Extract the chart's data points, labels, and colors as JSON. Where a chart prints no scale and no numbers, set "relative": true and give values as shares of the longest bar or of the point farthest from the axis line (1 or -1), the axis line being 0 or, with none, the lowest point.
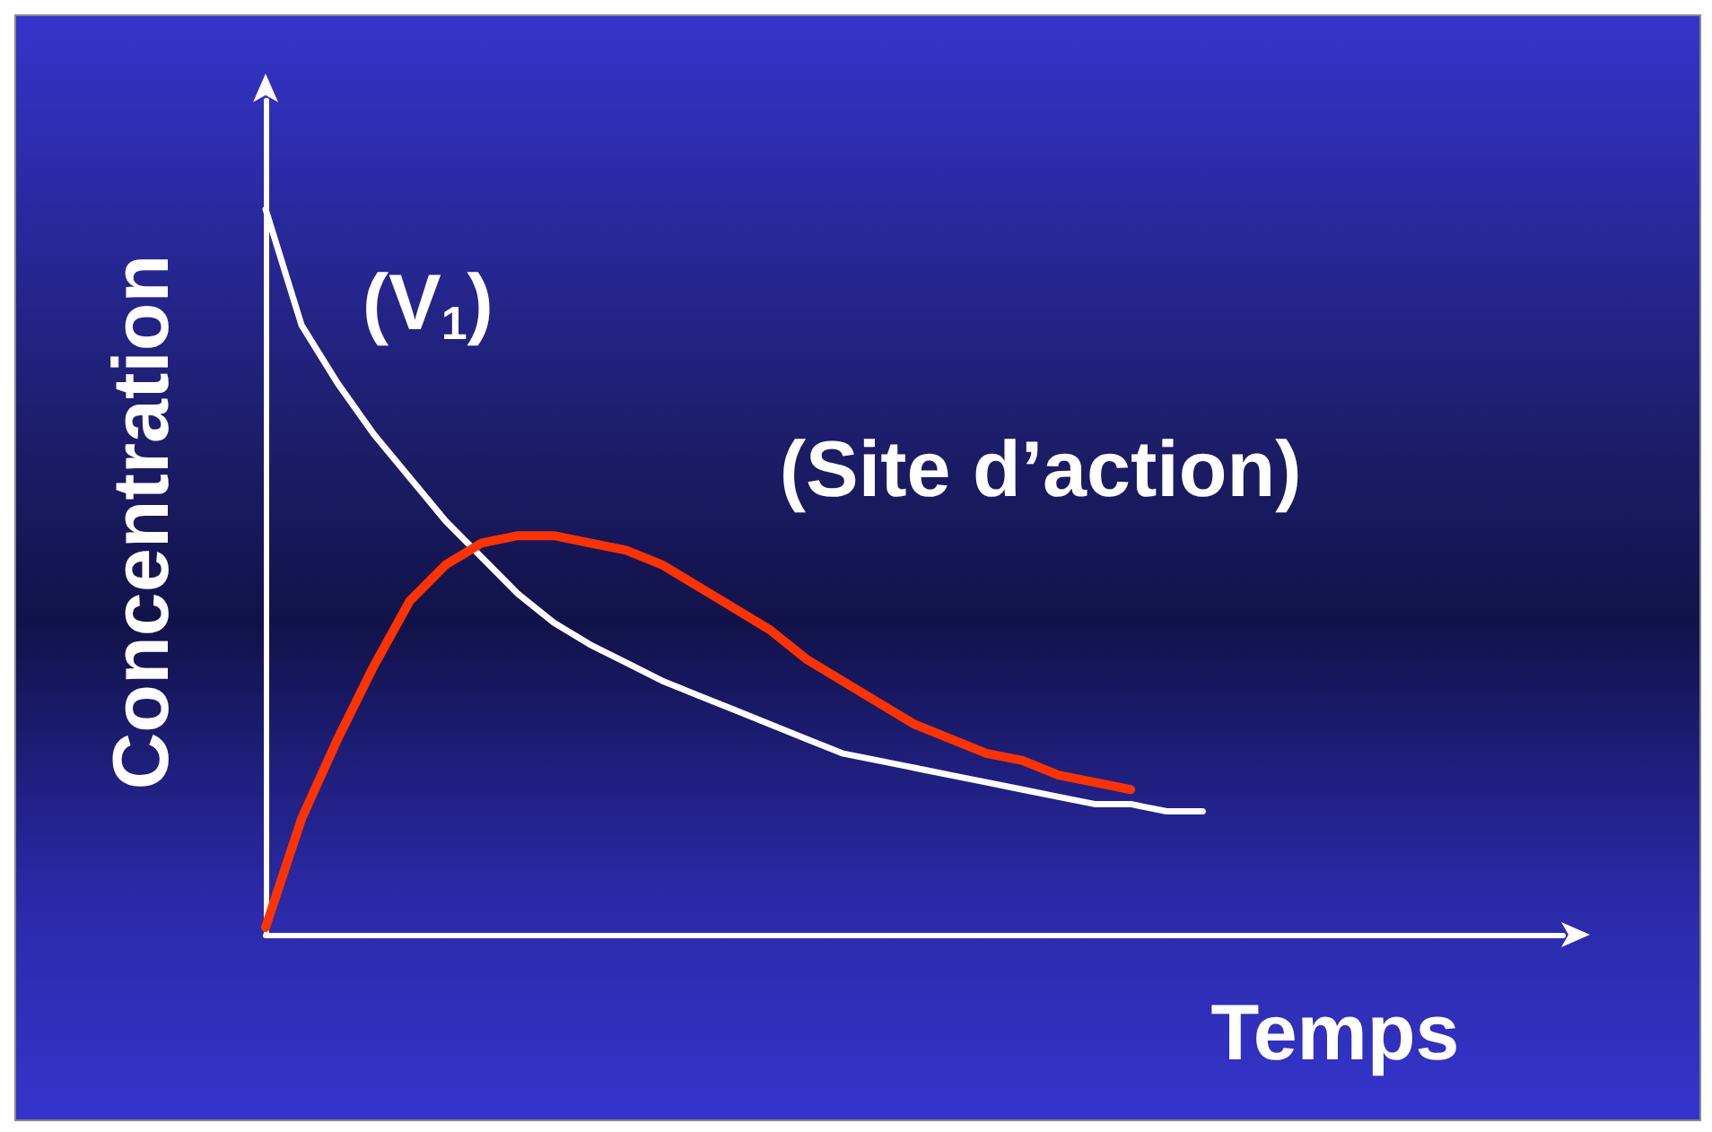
{
  "chart_data": {
    "type": "line",
    "relative": true,
    "xlabel": "Temps",
    "ylabel": "Concentration",
    "marker": "none",
    "line_style": "solid",
    "grid": false,
    "categories": [
      null,
      null,
      null,
      null,
      null,
      null,
      null,
      null,
      null,
      null,
      null,
      null,
      null,
      null,
      null,
      null,
      null,
      null,
      null,
      null,
      null,
      null,
      null,
      null,
      null,
      null,
      null,
      null,
      null,
      null,
      null,
      null,
      null,
      null,
      null,
      null,
      null
    ],
    "series": [
      {
        "name": "(V$_{1}$)",
        "color": "#ffffff",
        "values": [
          1.0,
          0.84,
          0.76,
          0.69,
          0.63,
          0.57,
          0.52,
          0.47,
          0.43,
          0.4,
          0.375,
          0.35,
          0.33,
          0.31,
          0.29,
          0.27,
          0.25,
          0.24,
          0.23,
          0.22,
          0.21,
          0.2,
          0.19,
          0.18,
          0.18,
          0.17,
          0.17,
          null,
          null,
          null,
          null,
          null,
          null,
          null,
          null,
          null,
          null
        ]
      },
      {
        "name": "(Site d’action)",
        "color": "#ff3300",
        "values": [
          0.01,
          0.16,
          0.27,
          0.37,
          0.46,
          0.51,
          0.54,
          0.55,
          0.55,
          0.54,
          0.53,
          0.51,
          0.48,
          0.45,
          0.42,
          0.38,
          0.35,
          0.32,
          0.29,
          0.27,
          0.25,
          0.24,
          0.22,
          0.21,
          0.2,
          null,
          null,
          null,
          null,
          null,
          null,
          null,
          null,
          null,
          null,
          null,
          null
        ]
      }
    ]
  }
}
